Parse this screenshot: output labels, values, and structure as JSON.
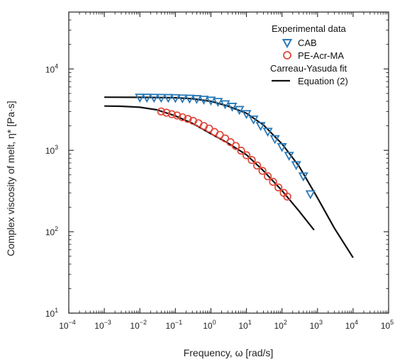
{
  "chart_data": {
    "type": "scatter",
    "x_scale": "log",
    "y_scale": "log",
    "xlim": [
      0.0001,
      100000
    ],
    "ylim": [
      10,
      50000
    ],
    "xlabel": "Frequency, ω [rad/s]",
    "ylabel": "Complex viscosity of melt, η* [Pa·s]",
    "x_ticks": [
      {
        "value": 0.0001,
        "base": "10",
        "exp": "−4"
      },
      {
        "value": 0.001,
        "base": "10",
        "exp": "−3"
      },
      {
        "value": 0.01,
        "base": "10",
        "exp": "−2"
      },
      {
        "value": 0.1,
        "base": "10",
        "exp": "−1"
      },
      {
        "value": 1,
        "base": "10",
        "exp": "0"
      },
      {
        "value": 10,
        "base": "10",
        "exp": "1"
      },
      {
        "value": 100,
        "base": "10",
        "exp": "2"
      },
      {
        "value": 1000,
        "base": "10",
        "exp": "3"
      },
      {
        "value": 10000,
        "base": "10",
        "exp": "4"
      },
      {
        "value": 100000,
        "base": "10",
        "exp": "5"
      }
    ],
    "y_ticks": [
      {
        "value": 10,
        "base": "10",
        "exp": "1"
      },
      {
        "value": 100,
        "base": "10",
        "exp": "2"
      },
      {
        "value": 1000,
        "base": "10",
        "exp": "3"
      },
      {
        "value": 10000,
        "base": "10",
        "exp": "4"
      }
    ],
    "legend": {
      "position": "top-right",
      "header_experimental": "Experimental data",
      "header_fit": "Carreau-Yasuda fit",
      "items": [
        "CAB",
        "PE-Acr-MA",
        "Equation (2)"
      ]
    },
    "series": [
      {
        "name": "CAB",
        "marker": "triangle-down",
        "color": "#2a7ab8",
        "x": [
          0.01,
          0.0158,
          0.0251,
          0.0398,
          0.0631,
          0.1,
          0.158,
          0.251,
          0.398,
          0.631,
          1.0,
          1.58,
          2.51,
          3.98,
          6.31,
          10.0,
          15.8,
          25.1,
          39.8,
          63.1,
          100,
          158,
          251,
          398,
          631
        ],
        "y": [
          4450,
          4450,
          4440,
          4430,
          4420,
          4400,
          4360,
          4330,
          4290,
          4210,
          4100,
          3950,
          3700,
          3450,
          3150,
          2800,
          2400,
          2000,
          1700,
          1380,
          1100,
          860,
          660,
          480,
          290
        ]
      },
      {
        "name": "PE-Acr-MA",
        "marker": "circle",
        "color": "#e0473a",
        "x": [
          0.0398,
          0.0562,
          0.0794,
          0.112,
          0.158,
          0.224,
          0.316,
          0.447,
          0.631,
          0.891,
          1.26,
          1.78,
          2.51,
          3.55,
          5.01,
          7.08,
          10.0,
          14.1,
          20.0,
          28.2,
          39.8,
          56.2,
          79.4,
          112,
          141
        ],
        "y": [
          3000,
          2900,
          2780,
          2680,
          2550,
          2430,
          2300,
          2150,
          1990,
          1850,
          1680,
          1550,
          1400,
          1260,
          1130,
          990,
          870,
          760,
          650,
          560,
          480,
          410,
          350,
          300,
          270
        ]
      },
      {
        "name": "Equation (2) CAB fit",
        "marker": "line",
        "color": "#111111",
        "x": [
          0.001,
          0.01,
          0.1,
          0.3,
          1.0,
          3.0,
          10.0,
          30.0,
          100,
          300,
          1000,
          3000,
          10000
        ],
        "y": [
          4500,
          4480,
          4420,
          4300,
          4000,
          3500,
          2850,
          2050,
          1200,
          640,
          260,
          110,
          48
        ]
      },
      {
        "name": "Equation (2) PE-Acr-MA fit",
        "marker": "line",
        "color": "#111111",
        "x": [
          0.001,
          0.003,
          0.01,
          0.03,
          0.1,
          0.3,
          1.0,
          3.0,
          10.0,
          30.0,
          100,
          300,
          800
        ],
        "y": [
          3500,
          3480,
          3380,
          3150,
          2650,
          2150,
          1600,
          1230,
          880,
          560,
          320,
          180,
          105
        ]
      }
    ]
  }
}
